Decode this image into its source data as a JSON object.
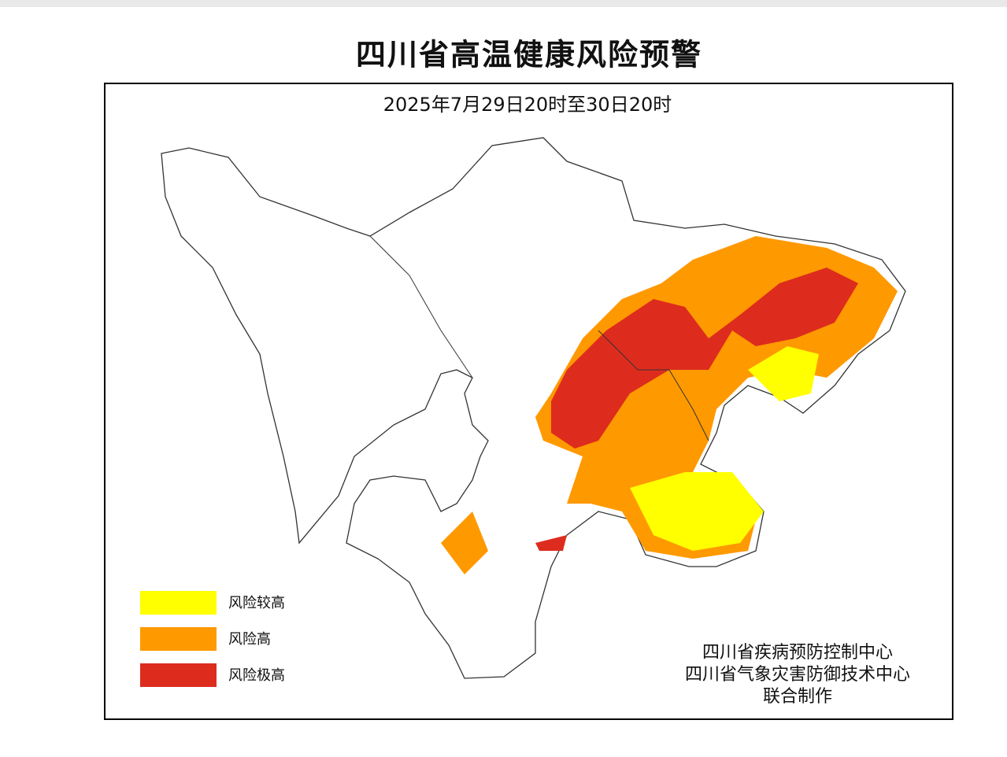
{
  "title": "四川省高温健康风险预警",
  "subtitle": "2025年7月29日20时至30日20时",
  "legend": [
    {
      "label": "风险较高",
      "color": "#ffff00"
    },
    {
      "label": "风险高",
      "color": "#ff9900"
    },
    {
      "label": "风险极高",
      "color": "#dd2c1e"
    }
  ],
  "credits": [
    "四川省疾病预防控制中心",
    "四川省气象灾害防御技术中心",
    "联合制作"
  ]
}
